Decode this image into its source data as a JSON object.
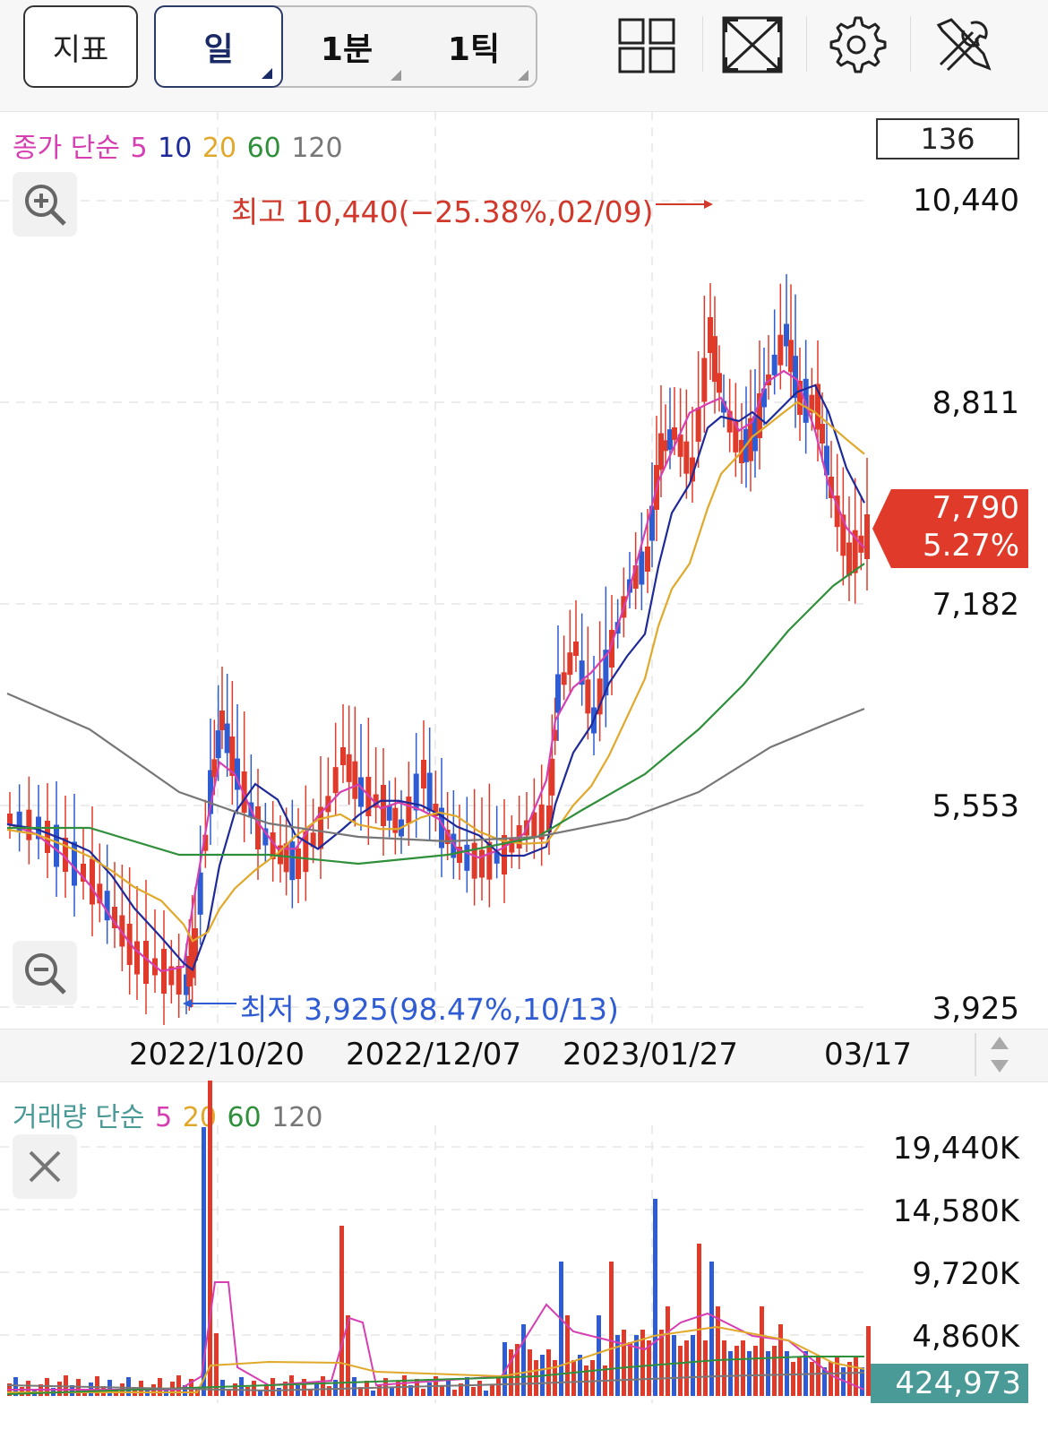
{
  "toolbar": {
    "indicator_label": "지표",
    "periods": [
      {
        "label": "일",
        "active": true
      },
      {
        "label": "1분",
        "active": false
      },
      {
        "label": "1틱",
        "active": false
      }
    ],
    "tools": [
      "layout-grid-icon",
      "fullscreen-icon",
      "settings-gear-icon",
      "tools-wrench-icon"
    ]
  },
  "price_chart": {
    "legend": {
      "prefix": "종가 단순",
      "ma": [
        {
          "label": "5",
          "color": "#d63fb1"
        },
        {
          "label": "10",
          "color": "#1f2a9a"
        },
        {
          "label": "20",
          "color": "#e0a92b"
        },
        {
          "label": "60",
          "color": "#2f8f3a"
        },
        {
          "label": "120",
          "color": "#777777"
        }
      ],
      "prefix_color": "#d63fb1"
    },
    "visible_count": "136",
    "y_ticks": [
      "10,440",
      "8,811",
      "7,182",
      "5,553",
      "3,925"
    ],
    "current_price": "7,790",
    "current_change": "5.27%",
    "high_annotation": "최고 10,440(−25.38%,02/09)",
    "low_annotation": "최저 3,925(98.47%,10/13)",
    "x_ticks": [
      "2022/10/20",
      "2022/12/07",
      "2023/01/27",
      "03/17"
    ],
    "colors": {
      "up": "#e03b2a",
      "down": "#2f5bd3",
      "high_text": "#d0392b",
      "low_text": "#2f5bd3"
    }
  },
  "volume_chart": {
    "legend": {
      "prefix": "거래량 단순",
      "prefix_color": "#4a9a97",
      "ma": [
        {
          "label": "5",
          "color": "#d63fb1"
        },
        {
          "label": "20",
          "color": "#e0a92b"
        },
        {
          "label": "60",
          "color": "#2f8f3a"
        },
        {
          "label": "120",
          "color": "#777777"
        }
      ]
    },
    "y_ticks": [
      "19,440K",
      "14,580K",
      "9,720K",
      "4,860K"
    ],
    "current_volume": "424,973"
  }
}
